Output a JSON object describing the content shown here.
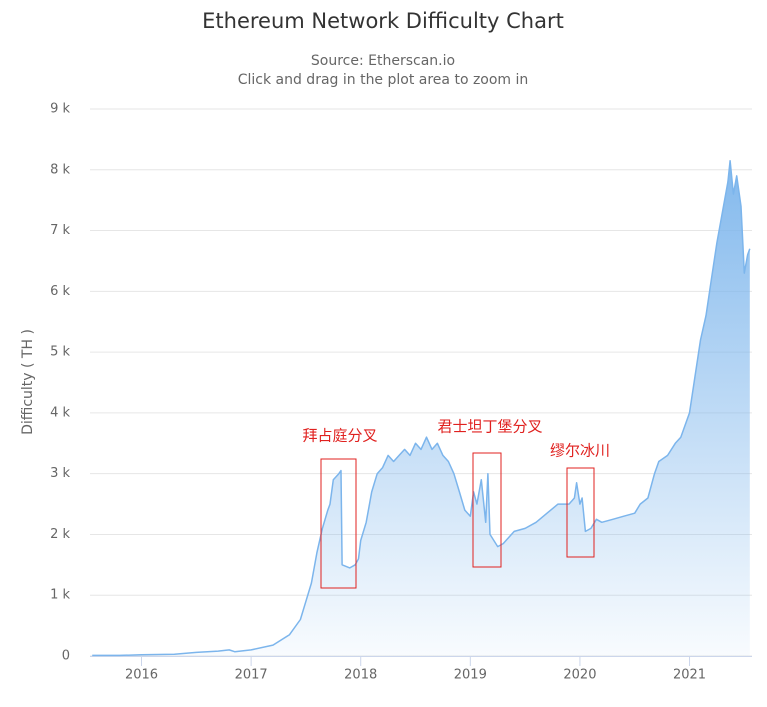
{
  "chart_data": {
    "type": "area",
    "title": "Ethereum Network Difficulty Chart",
    "subtitle": [
      "Source: Etherscan.io",
      "Click and drag in the plot area to zoom in"
    ],
    "y_label": "Difficulty ( TH )",
    "color": "#7cb5ec",
    "annotation_color": "#e0211f",
    "annotations": [
      "拜占庭分叉",
      "君士坦丁堡分叉",
      "缪尔冰川"
    ],
    "xlim": [
      2015.53,
      2021.57
    ],
    "xticks": [
      2016,
      2017,
      2018,
      2019,
      2020,
      2021
    ],
    "ylim": [
      0,
      9000
    ],
    "yticks": [
      0,
      {
        "value": 1000,
        "label": "1 k"
      },
      {
        "value": 2000,
        "label": "2 k"
      },
      {
        "value": 3000,
        "label": "3 k"
      },
      {
        "value": 4000,
        "label": "4 k"
      },
      {
        "value": 5000,
        "label": "5 k"
      },
      {
        "value": 6000,
        "label": "6 k"
      },
      {
        "value": 7000,
        "label": "7 k"
      },
      {
        "value": 8000,
        "label": "8 k"
      },
      {
        "value": 9000,
        "label": "9 k"
      }
    ],
    "grid": true,
    "x": [
      2015.55,
      2015.8,
      2016.0,
      2016.3,
      2016.5,
      2016.7,
      2016.8,
      2016.85,
      2017.0,
      2017.2,
      2017.35,
      2017.45,
      2017.5,
      2017.55,
      2017.6,
      2017.65,
      2017.7,
      2017.72,
      2017.75,
      2017.8,
      2017.82,
      2017.83,
      2017.9,
      2017.95,
      2017.98,
      2018.0,
      2018.05,
      2018.1,
      2018.15,
      2018.2,
      2018.25,
      2018.3,
      2018.35,
      2018.4,
      2018.45,
      2018.5,
      2018.55,
      2018.6,
      2018.65,
      2018.7,
      2018.75,
      2018.8,
      2018.85,
      2018.9,
      2018.95,
      2019.0,
      2019.03,
      2019.06,
      2019.1,
      2019.14,
      2019.16,
      2019.18,
      2019.25,
      2019.3,
      2019.35,
      2019.4,
      2019.5,
      2019.6,
      2019.7,
      2019.8,
      2019.9,
      2019.95,
      2019.97,
      2020.0,
      2020.02,
      2020.05,
      2020.1,
      2020.15,
      2020.2,
      2020.3,
      2020.4,
      2020.5,
      2020.55,
      2020.62,
      2020.68,
      2020.72,
      2020.8,
      2020.87,
      2020.92,
      2021.0,
      2021.05,
      2021.1,
      2021.15,
      2021.2,
      2021.25,
      2021.3,
      2021.35,
      2021.37,
      2021.4,
      2021.43,
      2021.47,
      2021.5,
      2021.53,
      2021.55
    ],
    "values": [
      10,
      10,
      20,
      30,
      60,
      80,
      100,
      70,
      100,
      180,
      350,
      600,
      900,
      1200,
      1700,
      2100,
      2400,
      2500,
      2900,
      3000,
      3050,
      1500,
      1450,
      1500,
      1600,
      1900,
      2200,
      2700,
      3000,
      3100,
      3300,
      3200,
      3300,
      3400,
      3300,
      3500,
      3400,
      3600,
      3400,
      3500,
      3300,
      3200,
      3000,
      2700,
      2400,
      2300,
      2700,
      2500,
      2900,
      2200,
      3000,
      2000,
      1800,
      1850,
      1950,
      2050,
      2100,
      2200,
      2350,
      2500,
      2500,
      2600,
      2850,
      2500,
      2600,
      2050,
      2100,
      2250,
      2200,
      2250,
      2300,
      2350,
      2500,
      2600,
      3000,
      3200,
      3300,
      3500,
      3600,
      4000,
      4600,
      5200,
      5600,
      6200,
      6800,
      7300,
      7800,
      8150,
      7600,
      7900,
      7400,
      6300,
      6600,
      6700
    ]
  }
}
